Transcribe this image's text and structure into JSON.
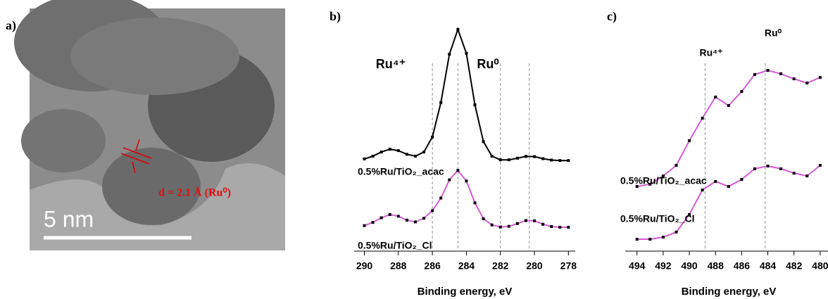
{
  "image_panel": {
    "label": "a)",
    "scale_bar": "5 nm",
    "annotation": "d = 2.1 Å (Ru⁰)"
  },
  "chart_data": [
    {
      "type": "line",
      "panel_label": "b)",
      "xlabel": "Binding energy, eV",
      "x": [
        290,
        289.5,
        289,
        288.5,
        288,
        287.5,
        287,
        286.5,
        286,
        285.5,
        285,
        284.5,
        284,
        283.5,
        283,
        282.5,
        282,
        281.5,
        281,
        280.5,
        280,
        279.5,
        279,
        278.5,
        278
      ],
      "series": [
        {
          "name": "0.5%Ru/TiO₂_acac",
          "color": "#000000",
          "values": [
            40.1,
            41.3,
            43.1,
            44.3,
            43.7,
            42.1,
            41.3,
            43.1,
            49.6,
            64.6,
            85.6,
            96.4,
            86.0,
            63.6,
            47.6,
            41.3,
            39.7,
            39.7,
            40.4,
            41.2,
            41.1,
            40.2,
            39.6,
            39.4,
            39.4
          ]
        },
        {
          "name": "0.5%Ru/TiO₂_Cl",
          "color": "#d65ad6",
          "values": [
            11.1,
            12.5,
            14.5,
            15.9,
            15.2,
            13.5,
            12.7,
            14.3,
            17.6,
            23.1,
            31.0,
            35.1,
            30.5,
            21.0,
            14.1,
            11.4,
            10.5,
            10.8,
            12.0,
            13.3,
            13.2,
            11.7,
            10.7,
            10.4,
            10.4
          ]
        }
      ],
      "xlim": [
        290.6,
        277.6
      ],
      "xticks": [
        290,
        288,
        286,
        284,
        282,
        280,
        278
      ],
      "ylim": [
        0,
        100
      ],
      "reference_lines": [
        286,
        284.5,
        282,
        280.3
      ],
      "annotations": [
        "Ru⁴⁺",
        "Ru⁰"
      ]
    },
    {
      "type": "line",
      "panel_label": "c)",
      "xlabel": "Binding energy, eV",
      "x": [
        494,
        493,
        492,
        491,
        490,
        489,
        488,
        487,
        486,
        485,
        484,
        483,
        482,
        481,
        480
      ],
      "series": [
        {
          "name": "0.5%Ru/TiO₂_acac",
          "color": "#d65ad6",
          "values": [
            28.1,
            29.1,
            32.7,
            37.3,
            48.0,
            57.8,
            67.0,
            63.3,
            69.4,
            76.8,
            78.6,
            77.1,
            74.9,
            73.1,
            75.5
          ]
        },
        {
          "name": "0.5%Ru/TiO₂_Cl",
          "color": "#d65ad6",
          "values": [
            5.2,
            5.2,
            6.1,
            8.3,
            15.9,
            26.6,
            30.3,
            28.1,
            31.2,
            35.8,
            37.0,
            35.8,
            33.9,
            32.7,
            37.3
          ]
        }
      ],
      "xlim": [
        494.9,
        479.4
      ],
      "xticks": [
        494,
        492,
        490,
        488,
        486,
        484,
        482,
        480
      ],
      "ylim": [
        0,
        100
      ],
      "reference_lines": [
        488.8,
        484.2
      ],
      "annotations": [
        "Ru⁴⁺",
        "Ru⁰"
      ]
    }
  ]
}
